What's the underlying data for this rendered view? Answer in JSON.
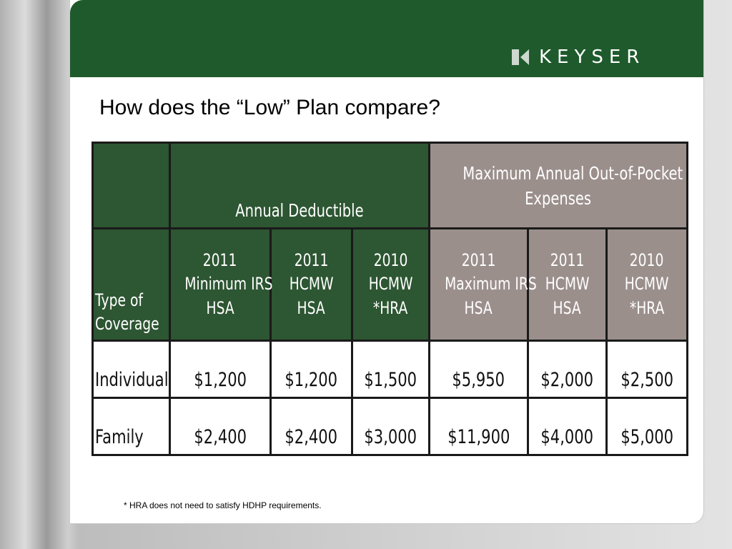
{
  "brand": {
    "logo_text": "KEYSER",
    "header_color": "#1f5a2c"
  },
  "title": "How does the “Low” Plan compare?",
  "table": {
    "group_headers": {
      "deductible": "Annual Deductible",
      "oop_line1": "Maximum Annual Out-of-Pocket",
      "oop_line2": "Expenses"
    },
    "col_headers": [
      {
        "l1": "Type of",
        "l2": "Coverage"
      },
      {
        "l1": "2011",
        "l2": "Minimum IRS",
        "l3": "HSA"
      },
      {
        "l1": "2011",
        "l2": "HCMW",
        "l3": "HSA"
      },
      {
        "l1": "2010",
        "l2": "HCMW",
        "l3": "*HRA"
      },
      {
        "l1": "2011",
        "l2": "Maximum IRS",
        "l3": "HSA"
      },
      {
        "l1": "2011",
        "l2": "HCMW",
        "l3": "HSA"
      },
      {
        "l1": "2010",
        "l2": "HCMW",
        "l3": "*HRA"
      }
    ],
    "rows": [
      {
        "label": "Individual",
        "values": [
          "$1,200",
          "$1,200",
          "$1,500",
          "$5,950",
          "$2,000",
          "$2,500"
        ]
      },
      {
        "label": "Family",
        "values": [
          "$2,400",
          "$2,400",
          "$3,000",
          "$11,900",
          "$4,000",
          "$5,000"
        ]
      }
    ],
    "colors": {
      "deductible": "#2d5632",
      "oop": "#9b8f8c"
    }
  },
  "footnote": "* HRA does not need to satisfy HDHP requirements."
}
